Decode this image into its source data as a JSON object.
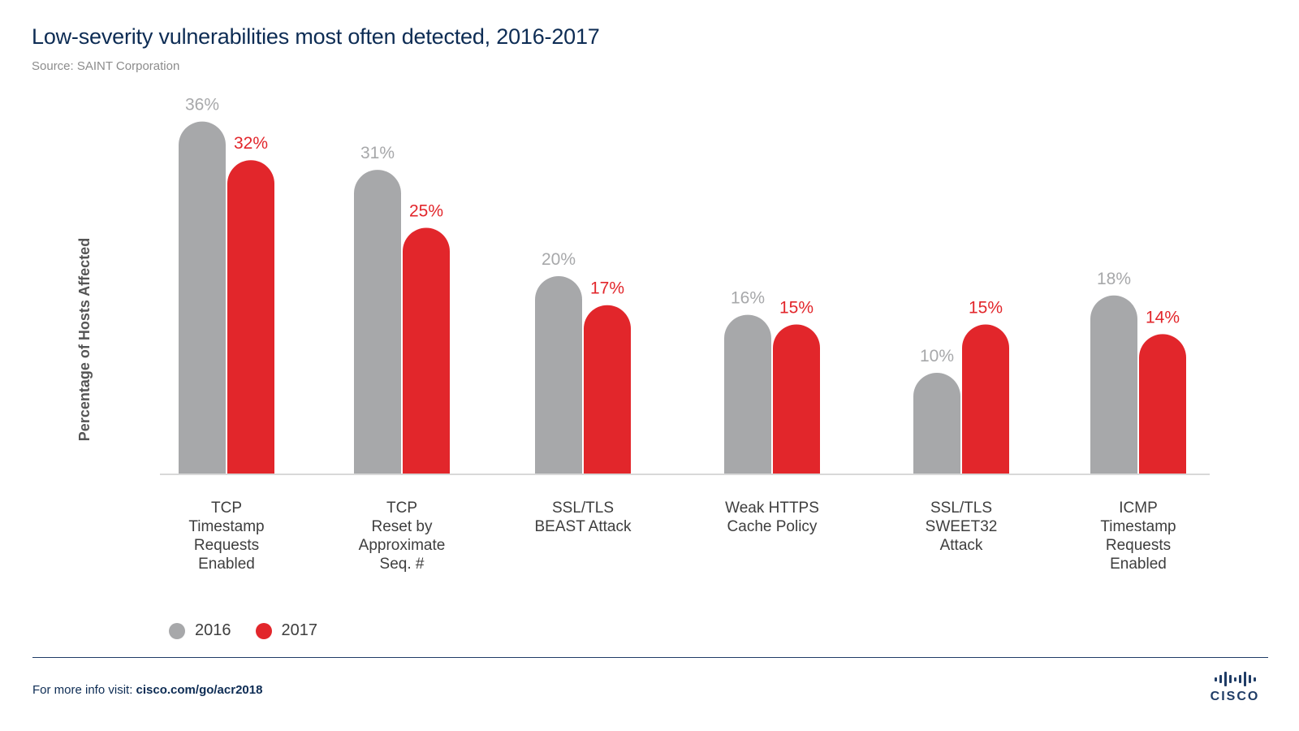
{
  "header": {
    "title": "Low-severity vulnerabilities most often detected, 2016-2017",
    "subtitle": "Source: SAINT Corporation"
  },
  "colors": {
    "series_2016": "#a7a8aa",
    "series_2017": "#e2262b",
    "brand": "#0d2c54"
  },
  "chart_data": {
    "type": "bar",
    "title": "Low-severity vulnerabilities most often detected, 2016-2017",
    "xlabel": "",
    "ylabel": "Percentage of Hosts Affected",
    "ylim": [
      0,
      36
    ],
    "grid": false,
    "legend_position": "bottom-left",
    "categories": [
      [
        "TCP",
        "Timestamp",
        "Requests",
        "Enabled"
      ],
      [
        "TCP",
        "Reset by",
        "Approximate",
        "Seq. #"
      ],
      [
        "SSL/TLS",
        "BEAST Attack"
      ],
      [
        "Weak HTTPS",
        "Cache Policy"
      ],
      [
        "SSL/TLS",
        "SWEET32",
        "Attack"
      ],
      [
        "ICMP",
        "Timestamp",
        "Requests",
        "Enabled"
      ]
    ],
    "series": [
      {
        "name": "2016",
        "values": [
          36,
          31,
          20,
          16,
          10,
          18
        ],
        "labels": [
          "36%",
          "31%",
          "20%",
          "16%",
          "10%",
          "18%"
        ]
      },
      {
        "name": "2017",
        "values": [
          32,
          25,
          17,
          15,
          15,
          14
        ],
        "labels": [
          "32%",
          "25%",
          "17%",
          "15%",
          "15%",
          "14%"
        ]
      }
    ]
  },
  "legend": [
    {
      "label": "2016"
    },
    {
      "label": "2017"
    }
  ],
  "footer": {
    "prefix": "For more info visit: ",
    "link": "cisco.com/go/acr2018"
  },
  "logo": {
    "text": "CISCO"
  }
}
